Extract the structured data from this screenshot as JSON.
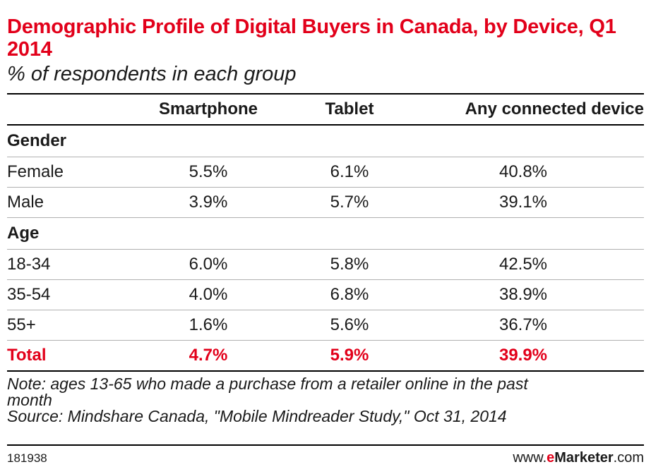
{
  "title": "Demographic Profile of Digital Buyers in Canada, by Device, Q1 2014",
  "subtitle": "% of respondents in each group",
  "chart_data": {
    "type": "table",
    "columns": [
      "",
      "Smartphone",
      "Tablet",
      "Any connected device"
    ],
    "groups": [
      {
        "label": "Gender",
        "rows": [
          {
            "label": "Female",
            "values": [
              "5.5%",
              "6.1%",
              "40.8%"
            ]
          },
          {
            "label": "Male",
            "values": [
              "3.9%",
              "5.7%",
              "39.1%"
            ]
          }
        ]
      },
      {
        "label": "Age",
        "rows": [
          {
            "label": "18-34",
            "values": [
              "6.0%",
              "5.8%",
              "42.5%"
            ]
          },
          {
            "label": "35-54",
            "values": [
              "4.0%",
              "6.8%",
              "38.9%"
            ]
          },
          {
            "label": "55+",
            "values": [
              "1.6%",
              "5.6%",
              "36.7%"
            ]
          }
        ]
      }
    ],
    "total": {
      "label": "Total",
      "values": [
        "4.7%",
        "5.9%",
        "39.9%"
      ]
    }
  },
  "note": {
    "line1": "Note: ages 13-65 who made a purchase from a retailer online in the past",
    "line2": "month",
    "source": "Source: Mindshare Canada, \"Mobile Mindreader Study,\" Oct 31, 2014"
  },
  "footer": {
    "chart_id": "181938",
    "brand_prefix": "www.",
    "brand_e": "e",
    "brand_marketer": "Marketer",
    "brand_suffix": ".com"
  },
  "colors": {
    "accent": "#e2001a",
    "text": "#1a1a1a",
    "rule": "#000000",
    "divider": "#b0b0b0"
  }
}
